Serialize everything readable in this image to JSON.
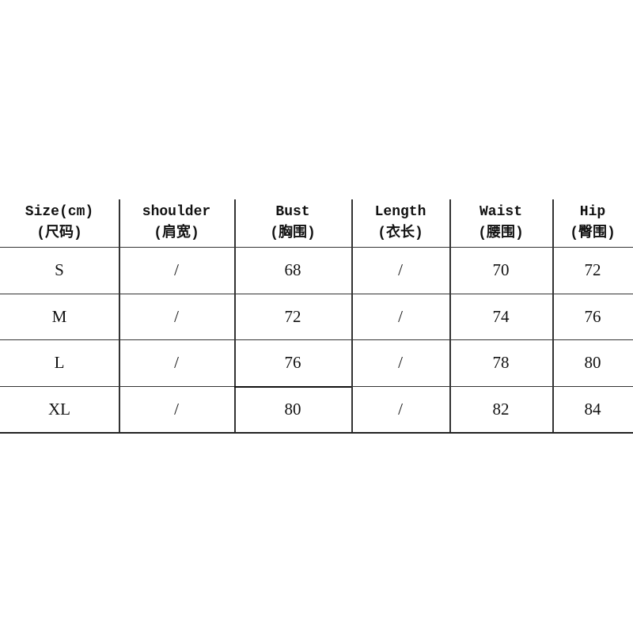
{
  "table": {
    "headers": [
      {
        "en": "Size(cm)",
        "zh": "(尺码)"
      },
      {
        "en": "shoulder",
        "zh": "(肩宽)"
      },
      {
        "en": "Bust",
        "zh": "(胸围)"
      },
      {
        "en": "Length",
        "zh": "(衣长)"
      },
      {
        "en": "Waist",
        "zh": "(腰围)"
      },
      {
        "en": "Hip",
        "zh": "(臀围)"
      }
    ],
    "rows": [
      [
        "S",
        "/",
        "68",
        "/",
        "70",
        "72"
      ],
      [
        "M",
        "/",
        "72",
        "/",
        "74",
        "76"
      ],
      [
        "L",
        "/",
        "76",
        "/",
        "78",
        "80"
      ],
      [
        "XL",
        "/",
        "80",
        "/",
        "82",
        "84"
      ]
    ]
  }
}
